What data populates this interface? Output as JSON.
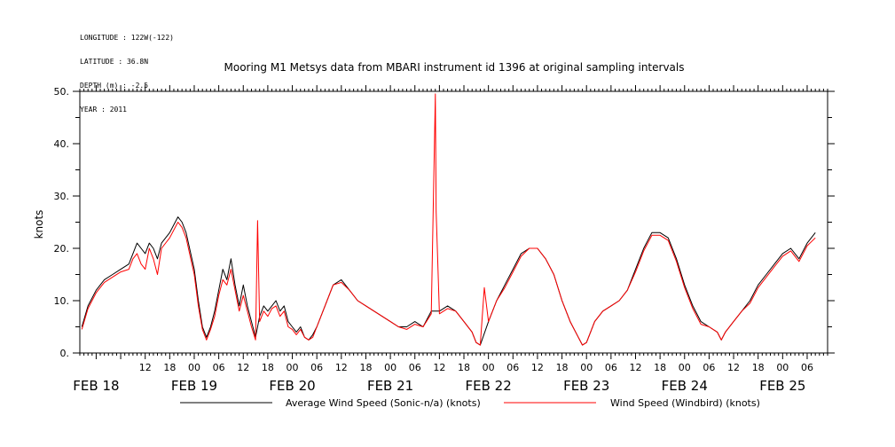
{
  "meta": {
    "longitude": "LONGITUDE : 122W(-122)",
    "latitude": "LATITUDE : 36.8N",
    "depth": "DEPTH (m) : -2.5",
    "year": "YEAR : 2011"
  },
  "colors": {
    "series_avg": "#000000",
    "series_windbird": "#ff0000"
  },
  "chart_data": {
    "type": "line",
    "title": "Mooring M1 Metsys data from MBARI instrument id 1396 at original sampling intervals",
    "ylabel": "knots",
    "xlabel": "",
    "ylim": [
      0,
      50
    ],
    "xlim_hours_from_feb18_00": [
      -4,
      179
    ],
    "y_ticks": [
      {
        "v": 0,
        "label": "0."
      },
      {
        "v": 10,
        "label": "10."
      },
      {
        "v": 20,
        "label": "20."
      },
      {
        "v": 30,
        "label": "30."
      },
      {
        "v": 40,
        "label": "40."
      },
      {
        "v": 50,
        "label": "50."
      }
    ],
    "x_tick_labels": [
      {
        "h": 12,
        "label": "12"
      },
      {
        "h": 18,
        "label": "18"
      },
      {
        "h": 24,
        "label": "00"
      },
      {
        "h": 30,
        "label": "06"
      },
      {
        "h": 36,
        "label": "12"
      },
      {
        "h": 42,
        "label": "18"
      },
      {
        "h": 48,
        "label": "00"
      },
      {
        "h": 54,
        "label": "06"
      },
      {
        "h": 60,
        "label": "12"
      },
      {
        "h": 66,
        "label": "18"
      },
      {
        "h": 72,
        "label": "00"
      },
      {
        "h": 78,
        "label": "06"
      },
      {
        "h": 84,
        "label": "12"
      },
      {
        "h": 90,
        "label": "18"
      },
      {
        "h": 96,
        "label": "00"
      },
      {
        "h": 102,
        "label": "06"
      },
      {
        "h": 108,
        "label": "12"
      },
      {
        "h": 114,
        "label": "18"
      },
      {
        "h": 120,
        "label": "00"
      },
      {
        "h": 126,
        "label": "06"
      },
      {
        "h": 132,
        "label": "12"
      },
      {
        "h": 138,
        "label": "18"
      },
      {
        "h": 144,
        "label": "00"
      },
      {
        "h": 150,
        "label": "06"
      },
      {
        "h": 156,
        "label": "12"
      },
      {
        "h": 162,
        "label": "18"
      },
      {
        "h": 168,
        "label": "00"
      },
      {
        "h": 174,
        "label": "06"
      }
    ],
    "date_labels": [
      {
        "h": 0,
        "label": "FEB 18"
      },
      {
        "h": 24,
        "label": "FEB 19"
      },
      {
        "h": 48,
        "label": "FEB 20"
      },
      {
        "h": 72,
        "label": "FEB 21"
      },
      {
        "h": 96,
        "label": "FEB 22"
      },
      {
        "h": 120,
        "label": "FEB 23"
      },
      {
        "h": 144,
        "label": "FEB 24"
      },
      {
        "h": 168,
        "label": "FEB 25"
      }
    ],
    "series": [
      {
        "name": "Average Wind Speed (Sonic-n/a) (knots)",
        "color": "#000000",
        "points": [
          [
            -3.5,
            5
          ],
          [
            -2,
            9
          ],
          [
            0,
            12
          ],
          [
            2,
            14
          ],
          [
            4,
            15
          ],
          [
            6,
            16
          ],
          [
            8,
            17
          ],
          [
            9,
            19
          ],
          [
            10,
            21
          ],
          [
            11,
            20
          ],
          [
            12,
            19
          ],
          [
            13,
            21
          ],
          [
            14,
            20
          ],
          [
            15,
            18
          ],
          [
            16,
            21
          ],
          [
            18,
            23
          ],
          [
            20,
            26
          ],
          [
            21,
            25
          ],
          [
            22,
            23
          ],
          [
            24,
            16
          ],
          [
            25,
            10
          ],
          [
            26,
            5
          ],
          [
            27,
            3
          ],
          [
            28,
            5
          ],
          [
            29,
            8
          ],
          [
            30,
            12
          ],
          [
            31,
            16
          ],
          [
            32,
            14
          ],
          [
            33,
            18
          ],
          [
            34,
            13
          ],
          [
            35,
            9
          ],
          [
            36,
            13
          ],
          [
            37,
            9
          ],
          [
            38,
            6
          ],
          [
            39,
            3
          ],
          [
            40,
            7
          ],
          [
            41,
            9
          ],
          [
            42,
            8
          ],
          [
            43,
            9
          ],
          [
            44,
            10
          ],
          [
            45,
            8
          ],
          [
            46,
            9
          ],
          [
            47,
            6
          ],
          [
            48,
            5
          ],
          [
            49,
            4
          ],
          [
            50,
            5
          ],
          [
            51,
            3
          ],
          [
            52,
            2.5
          ],
          [
            53,
            3.5
          ],
          [
            54,
            5
          ],
          [
            56,
            9
          ],
          [
            58,
            13
          ],
          [
            60,
            14
          ],
          [
            62,
            12
          ],
          [
            64,
            10
          ],
          [
            66,
            9
          ],
          [
            68,
            8
          ],
          [
            70,
            7
          ],
          [
            72,
            6
          ],
          [
            74,
            5
          ],
          [
            76,
            5
          ],
          [
            78,
            6
          ],
          [
            80,
            5
          ],
          [
            82,
            8
          ],
          [
            84,
            8
          ],
          [
            86,
            9
          ],
          [
            88,
            8
          ],
          [
            90,
            6
          ],
          [
            92,
            4
          ],
          [
            93,
            2
          ],
          [
            94,
            1.5
          ],
          [
            96,
            6
          ],
          [
            98,
            10
          ],
          [
            100,
            13
          ],
          [
            102,
            16
          ],
          [
            104,
            19
          ],
          [
            106,
            20
          ],
          [
            108,
            20
          ],
          [
            110,
            18
          ],
          [
            112,
            15
          ],
          [
            114,
            10
          ],
          [
            116,
            6
          ],
          [
            118,
            3
          ],
          [
            119,
            1.5
          ],
          [
            120,
            2
          ],
          [
            121,
            4
          ],
          [
            122,
            6
          ],
          [
            124,
            8
          ],
          [
            126,
            9
          ],
          [
            128,
            10
          ],
          [
            130,
            12
          ],
          [
            132,
            16
          ],
          [
            134,
            20
          ],
          [
            136,
            23
          ],
          [
            138,
            23
          ],
          [
            140,
            22
          ],
          [
            142,
            18
          ],
          [
            144,
            13
          ],
          [
            146,
            9
          ],
          [
            148,
            6
          ],
          [
            150,
            5
          ],
          [
            152,
            4
          ],
          [
            153,
            2.5
          ],
          [
            154,
            4
          ],
          [
            156,
            6
          ],
          [
            158,
            8
          ],
          [
            160,
            10
          ],
          [
            162,
            13
          ],
          [
            164,
            15
          ],
          [
            166,
            17
          ],
          [
            168,
            19
          ],
          [
            170,
            20
          ],
          [
            172,
            18
          ],
          [
            174,
            21
          ],
          [
            176,
            23
          ]
        ]
      },
      {
        "name": "Wind Speed (Windbird) (knots)",
        "color": "#ff0000",
        "points": [
          [
            -3.5,
            4.5
          ],
          [
            -2,
            8.5
          ],
          [
            0,
            11.5
          ],
          [
            2,
            13.5
          ],
          [
            4,
            14.5
          ],
          [
            6,
            15.5
          ],
          [
            8,
            16
          ],
          [
            9,
            18
          ],
          [
            10,
            19
          ],
          [
            11,
            17
          ],
          [
            12,
            16
          ],
          [
            13,
            20
          ],
          [
            14,
            18
          ],
          [
            15,
            15
          ],
          [
            16,
            20
          ],
          [
            18,
            22
          ],
          [
            20,
            25
          ],
          [
            21,
            24
          ],
          [
            22,
            22
          ],
          [
            24,
            15
          ],
          [
            25,
            9
          ],
          [
            26,
            4.5
          ],
          [
            27,
            2.5
          ],
          [
            28,
            4.5
          ],
          [
            29,
            7
          ],
          [
            30,
            11
          ],
          [
            31,
            14
          ],
          [
            32,
            13
          ],
          [
            33,
            16
          ],
          [
            34,
            12
          ],
          [
            35,
            8
          ],
          [
            36,
            11
          ],
          [
            37,
            8
          ],
          [
            38,
            5
          ],
          [
            39,
            2.5
          ],
          [
            39.5,
            25.3
          ],
          [
            40,
            6
          ],
          [
            41,
            8
          ],
          [
            42,
            7
          ],
          [
            43,
            8.5
          ],
          [
            44,
            9
          ],
          [
            45,
            7
          ],
          [
            46,
            8
          ],
          [
            47,
            5
          ],
          [
            48,
            4.5
          ],
          [
            49,
            3.5
          ],
          [
            50,
            4.5
          ],
          [
            51,
            3
          ],
          [
            52,
            2.5
          ],
          [
            53,
            3
          ],
          [
            54,
            5
          ],
          [
            56,
            9
          ],
          [
            58,
            13
          ],
          [
            60,
            13.5
          ],
          [
            62,
            12
          ],
          [
            64,
            10
          ],
          [
            66,
            9
          ],
          [
            68,
            8
          ],
          [
            70,
            7
          ],
          [
            72,
            6
          ],
          [
            74,
            5
          ],
          [
            76,
            4.5
          ],
          [
            78,
            5.5
          ],
          [
            80,
            5
          ],
          [
            82,
            7.5
          ],
          [
            83,
            49.5
          ],
          [
            83.2,
            27
          ],
          [
            84,
            7.5
          ],
          [
            86,
            8.5
          ],
          [
            88,
            8
          ],
          [
            90,
            6
          ],
          [
            92,
            4
          ],
          [
            93,
            2
          ],
          [
            94,
            1.5
          ],
          [
            95,
            12.5
          ],
          [
            96,
            6
          ],
          [
            98,
            10
          ],
          [
            100,
            12.5
          ],
          [
            102,
            15.5
          ],
          [
            104,
            18.5
          ],
          [
            106,
            20
          ],
          [
            108,
            20
          ],
          [
            110,
            18
          ],
          [
            112,
            15
          ],
          [
            114,
            10
          ],
          [
            116,
            6
          ],
          [
            118,
            3
          ],
          [
            119,
            1.5
          ],
          [
            120,
            2
          ],
          [
            121,
            4
          ],
          [
            122,
            6
          ],
          [
            124,
            8
          ],
          [
            126,
            9
          ],
          [
            128,
            10
          ],
          [
            130,
            12
          ],
          [
            132,
            15.5
          ],
          [
            134,
            19.5
          ],
          [
            136,
            22.5
          ],
          [
            138,
            22.5
          ],
          [
            140,
            21.5
          ],
          [
            142,
            17.5
          ],
          [
            144,
            12.5
          ],
          [
            146,
            8.5
          ],
          [
            148,
            5.5
          ],
          [
            150,
            5
          ],
          [
            152,
            4
          ],
          [
            153,
            2.5
          ],
          [
            154,
            4
          ],
          [
            156,
            6
          ],
          [
            158,
            8
          ],
          [
            160,
            9.5
          ],
          [
            162,
            12.5
          ],
          [
            164,
            14.5
          ],
          [
            166,
            16.5
          ],
          [
            168,
            18.5
          ],
          [
            170,
            19.5
          ],
          [
            172,
            17.5
          ],
          [
            174,
            20.5
          ],
          [
            176,
            22
          ]
        ]
      }
    ],
    "grid": false,
    "legend_position": "bottom"
  }
}
